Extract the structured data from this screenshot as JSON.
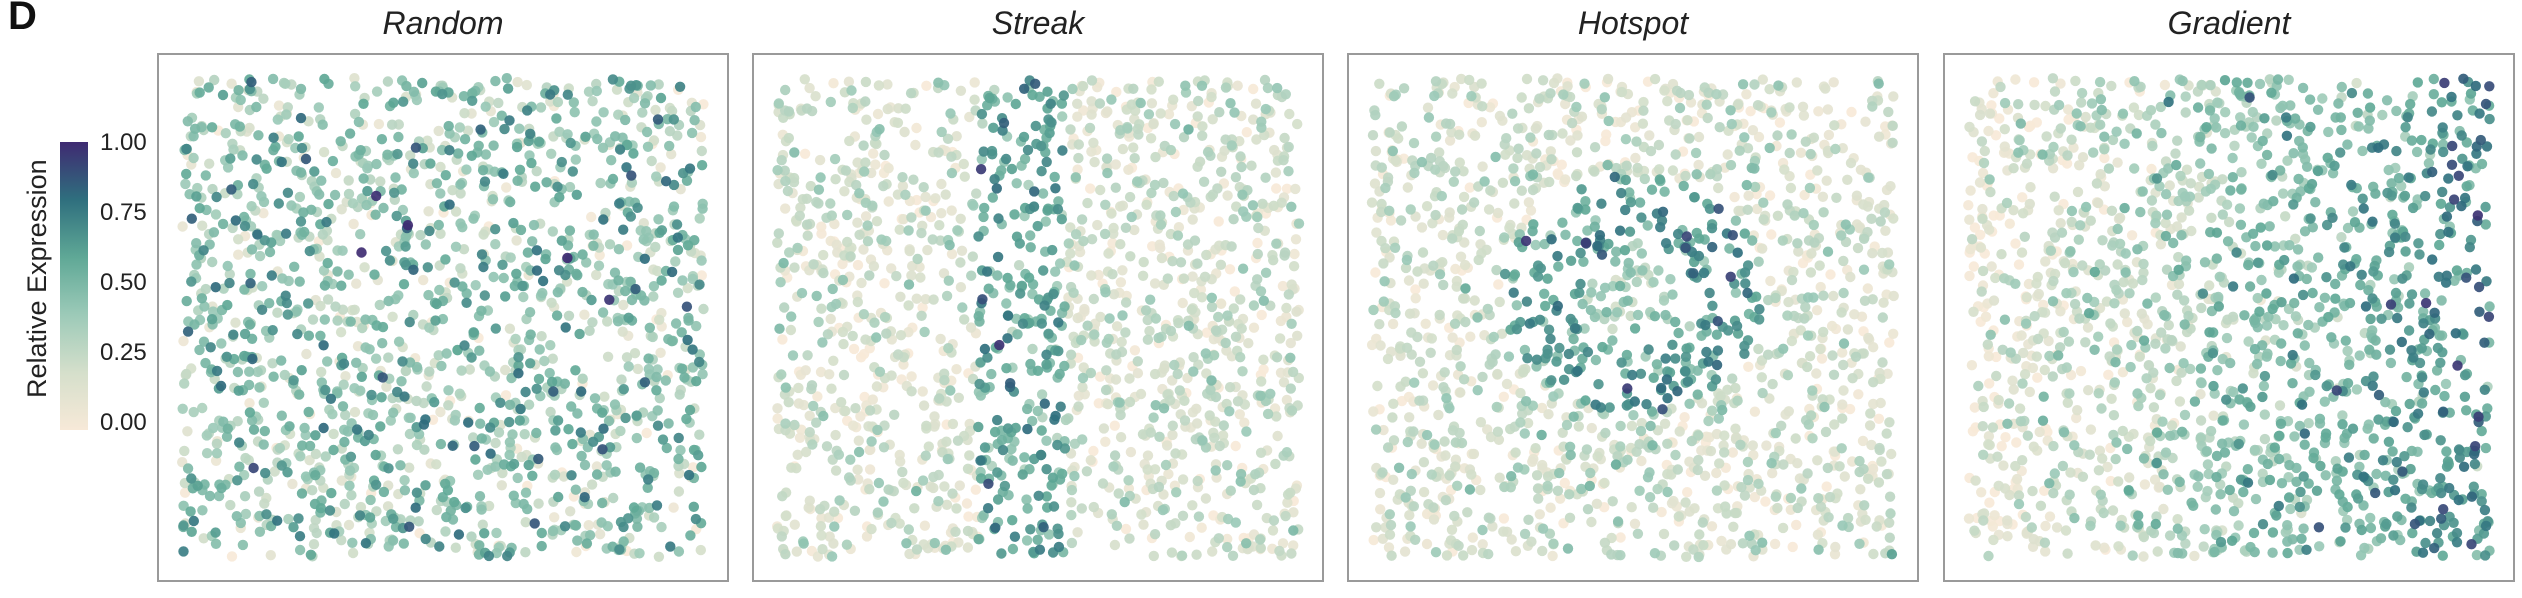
{
  "figure": {
    "panel_label": "D"
  },
  "legend": {
    "title": "Relative Expression",
    "ticks": [
      "1.00",
      "0.75",
      "0.50",
      "0.25",
      "0.00"
    ],
    "tick_values": [
      1.0,
      0.75,
      0.5,
      0.25,
      0.0
    ],
    "color_stops": [
      {
        "value": 0.0,
        "color": "#f7e9d8"
      },
      {
        "value": 0.2,
        "color": "#d5dfcb"
      },
      {
        "value": 0.4,
        "color": "#9ccab8"
      },
      {
        "value": 0.6,
        "color": "#5fa896"
      },
      {
        "value": 0.8,
        "color": "#2f6f7e"
      },
      {
        "value": 1.0,
        "color": "#3f2a72"
      }
    ]
  },
  "chart_data": [
    {
      "type": "scatter",
      "title": "Random",
      "pattern": "random",
      "point_count": 1600,
      "xlim": [
        0,
        1
      ],
      "ylim": [
        0,
        1
      ],
      "grid": false
    },
    {
      "type": "scatter",
      "title": "Streak",
      "pattern": "vertical-streak",
      "point_count": 1600,
      "xlim": [
        0,
        1
      ],
      "ylim": [
        0,
        1
      ],
      "grid": false
    },
    {
      "type": "scatter",
      "title": "Hotspot",
      "pattern": "ring-hotspot",
      "point_count": 1600,
      "xlim": [
        0,
        1
      ],
      "ylim": [
        0,
        1
      ],
      "grid": false
    },
    {
      "type": "scatter",
      "title": "Gradient",
      "pattern": "left-to-right-gradient",
      "point_count": 1600,
      "xlim": [
        0,
        1
      ],
      "ylim": [
        0,
        1
      ],
      "grid": false
    }
  ]
}
